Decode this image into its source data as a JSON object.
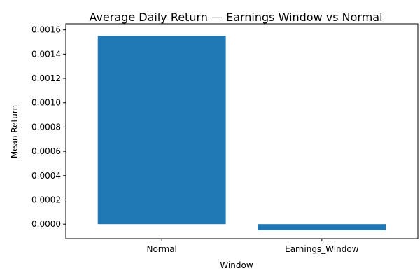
{
  "chart_data": {
    "type": "bar",
    "title": "Average Daily Return — Earnings Window vs Normal",
    "xlabel": "Window",
    "ylabel": "Mean Return",
    "categories": [
      "Normal",
      "Earnings_Window"
    ],
    "values": [
      0.00155,
      -5e-05
    ],
    "ylim": [
      -0.00012,
      0.00165
    ],
    "yticks": [
      0.0,
      0.0002,
      0.0004,
      0.0006,
      0.0008,
      0.001,
      0.0012,
      0.0014,
      0.0016
    ],
    "ytick_labels": [
      "0.0000",
      "0.0002",
      "0.0004",
      "0.0006",
      "0.0008",
      "0.0010",
      "0.0012",
      "0.0014",
      "0.0016"
    ],
    "bar_color": "#1f77b4",
    "grid": false,
    "legend": "none"
  }
}
